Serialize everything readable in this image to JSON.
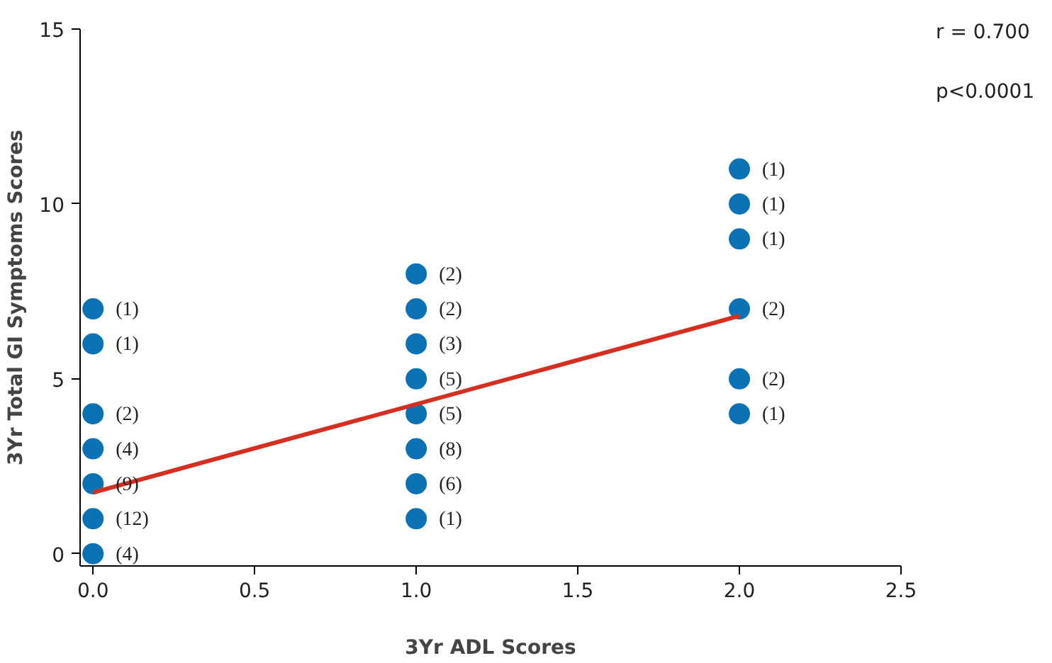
{
  "chart_data": {
    "type": "scatter",
    "xlabel": "3Yr ADL Scores",
    "ylabel": "3Yr Total GI Symptoms Scores",
    "annotations": [
      "r = 0.700",
      "p<0.0001",
      {
        "text": "(1)",
        "x": 0,
        "y": 7
      },
      {
        "text": "(1)",
        "x": 0,
        "y": 6
      },
      {
        "text": "(2)",
        "x": 0,
        "y": 4
      },
      {
        "text": "(4)",
        "x": 0,
        "y": 3
      },
      {
        "text": "(9)",
        "x": 0,
        "y": 2
      },
      {
        "text": "(12)",
        "x": 0,
        "y": 1
      },
      {
        "text": "(4)",
        "x": 0,
        "y": 0
      },
      {
        "text": "(2)",
        "x": 1,
        "y": 8
      },
      {
        "text": "(2)",
        "x": 1,
        "y": 7
      },
      {
        "text": "(3)",
        "x": 1,
        "y": 6
      },
      {
        "text": "(5)",
        "x": 1,
        "y": 5
      },
      {
        "text": "(5)",
        "x": 1,
        "y": 4
      },
      {
        "text": "(8)",
        "x": 1,
        "y": 3
      },
      {
        "text": "(6)",
        "x": 1,
        "y": 2
      },
      {
        "text": "(1)",
        "x": 1,
        "y": 1
      },
      {
        "text": "(1)",
        "x": 2,
        "y": 11
      },
      {
        "text": "(1)",
        "x": 2,
        "y": 10
      },
      {
        "text": "(1)",
        "x": 2,
        "y": 9
      },
      {
        "text": "(2)",
        "x": 2,
        "y": 7
      },
      {
        "text": "(2)",
        "x": 2,
        "y": 5
      },
      {
        "text": "(1)",
        "x": 2,
        "y": 4
      }
    ],
    "xlim": [
      -0.04,
      2.5
    ],
    "ylim": [
      -0.35,
      15
    ],
    "xticks": [
      {
        "value": 0,
        "label": "0.0"
      },
      {
        "value": 0.5,
        "label": "0.5"
      },
      {
        "value": 1,
        "label": "1.0"
      },
      {
        "value": 1.5,
        "label": "1.5"
      },
      {
        "value": 2,
        "label": "2.0"
      },
      {
        "value": 2.5,
        "label": "2.5"
      }
    ],
    "yticks": [
      0,
      5,
      10,
      15
    ],
    "grid": false,
    "series": [
      {
        "color": "#0b72b5",
        "marker": "circle",
        "x": [
          0,
          0,
          0,
          0,
          0,
          0,
          0,
          1,
          1,
          1,
          1,
          1,
          1,
          1,
          1,
          2,
          2,
          2,
          2,
          2,
          2
        ],
        "values": [
          7,
          6,
          4,
          3,
          2,
          1,
          0,
          8,
          7,
          6,
          5,
          4,
          3,
          2,
          1,
          11,
          10,
          9,
          7,
          5,
          4
        ]
      },
      {
        "type": "line",
        "color": "#d62f1f",
        "marker": "none",
        "x": [
          0,
          2
        ],
        "values": [
          1.75,
          6.8
        ]
      }
    ]
  }
}
